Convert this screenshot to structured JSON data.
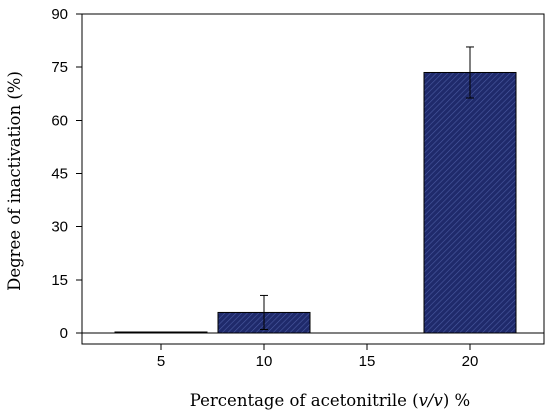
{
  "chart_data": {
    "type": "bar",
    "categories": [
      "5",
      "10",
      "15",
      "20"
    ],
    "values": [
      0.2,
      5.8,
      0,
      73.5
    ],
    "errors": [
      0,
      4.8,
      0,
      7.2
    ],
    "xlabel": {
      "prefix": "Percentage of acetonitrile (",
      "italic": "v/v",
      "suffix": ") %"
    },
    "ylabel": "Degree of inactivation (%)",
    "ylim": [
      0,
      90
    ],
    "yticks": [
      "0",
      "15",
      "30",
      "45",
      "60",
      "75",
      "90"
    ],
    "grid": false,
    "bar_color": "#1f2a6b",
    "bar_hatch_color": "#4a5aa0"
  }
}
